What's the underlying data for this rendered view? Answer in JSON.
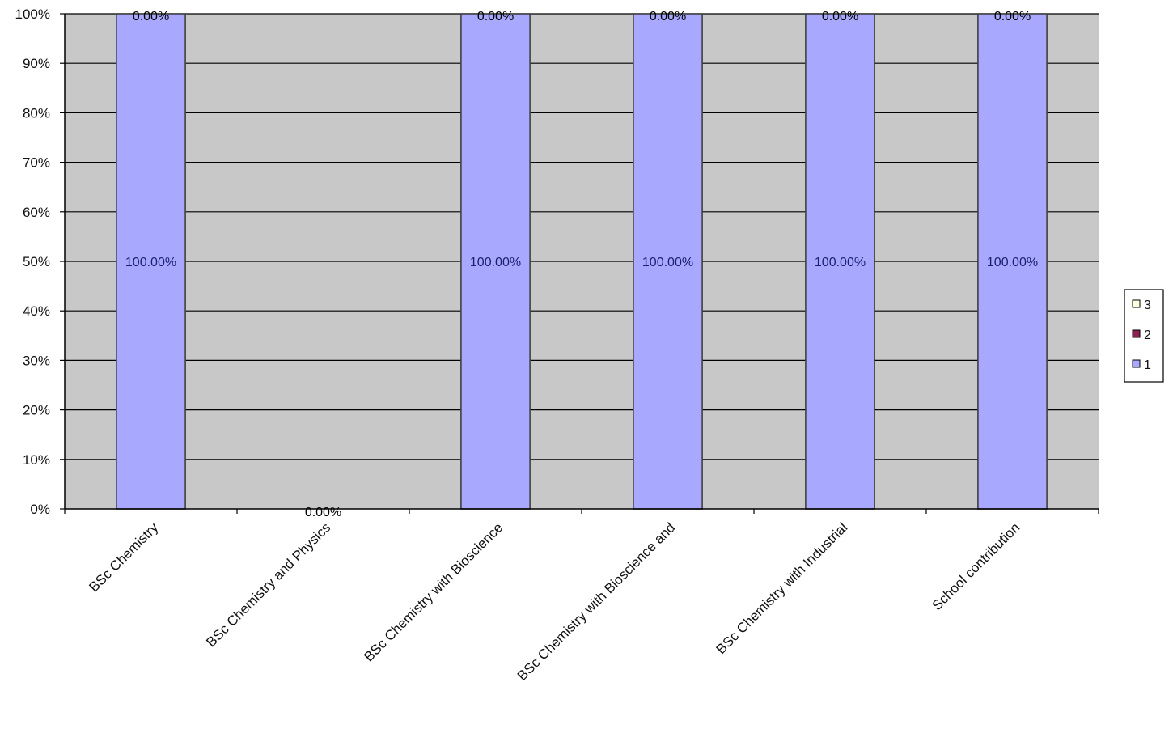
{
  "chart_data": {
    "type": "bar",
    "stacked": "percent",
    "categories": [
      "BSc Chemistry",
      "BSc Chemistry and Physics",
      "BSc Chemistry with Bioscience",
      "BSc Chemistry with Bioscience and",
      "BSc Chemistry with Industrial",
      "School contribution"
    ],
    "series": [
      {
        "name": "1",
        "values": [
          100,
          0,
          100,
          100,
          100,
          100
        ],
        "color": "#a8a8ff"
      },
      {
        "name": "2",
        "values": [
          0,
          0,
          0,
          0,
          0,
          0
        ],
        "color": "#8b2252"
      },
      {
        "name": "3",
        "values": [
          0,
          0,
          0,
          0,
          0,
          0
        ],
        "color": "#ffffe0"
      }
    ],
    "data_labels": {
      "bar": [
        "100.00%",
        "",
        "100.00%",
        "100.00%",
        "100.00%",
        "100.00%"
      ],
      "top": [
        "0.00%",
        "",
        "0.00%",
        "0.00%",
        "0.00%",
        "0.00%"
      ],
      "base": [
        "",
        "0.00%",
        "",
        "",
        "",
        ""
      ]
    },
    "y_ticks": [
      "0%",
      "10%",
      "20%",
      "30%",
      "40%",
      "50%",
      "60%",
      "70%",
      "80%",
      "90%",
      "100%"
    ],
    "ylim": [
      0,
      100
    ],
    "grid": true,
    "plot_background": "#c8c8c8",
    "legend_placement": "right",
    "title": "",
    "xlabel": "",
    "ylabel": ""
  }
}
